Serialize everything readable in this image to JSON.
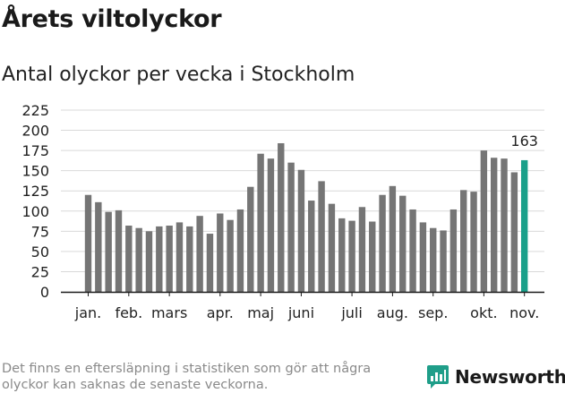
{
  "header": {
    "title": "Årets viltolyckor",
    "subtitle": "Antal olyckor per vecka i Stockholm"
  },
  "colors": {
    "bar": "#757575",
    "highlight": "#1aa08a",
    "grid": "#d9d9d9",
    "axis": "#1a1a1a",
    "brand": "#1f9e89",
    "footnote": "#8a8a8a"
  },
  "chart_data": {
    "type": "bar",
    "title": "Antal olyckor per vecka i Stockholm",
    "xlabel": "",
    "ylabel": "",
    "ylim": [
      0,
      225
    ],
    "y_ticks": [
      0,
      25,
      50,
      75,
      100,
      125,
      150,
      175,
      200,
      225
    ],
    "grid": true,
    "values": [
      120,
      111,
      99,
      101,
      82,
      79,
      75,
      81,
      82,
      86,
      81,
      94,
      72,
      97,
      89,
      102,
      130,
      171,
      165,
      184,
      160,
      151,
      113,
      137,
      109,
      91,
      88,
      105,
      87,
      120,
      131,
      119,
      102,
      86,
      79,
      76,
      102,
      126,
      124,
      175,
      166,
      165,
      148,
      163
    ],
    "month_labels": [
      {
        "label": "jan.",
        "week": 1
      },
      {
        "label": "feb.",
        "week": 5
      },
      {
        "label": "mars",
        "week": 9
      },
      {
        "label": "apr.",
        "week": 14
      },
      {
        "label": "maj",
        "week": 18
      },
      {
        "label": "juni",
        "week": 22
      },
      {
        "label": "juli",
        "week": 27
      },
      {
        "label": "aug.",
        "week": 31
      },
      {
        "label": "sep.",
        "week": 35
      },
      {
        "label": "okt.",
        "week": 40
      },
      {
        "label": "nov.",
        "week": 44
      }
    ],
    "highlight_index": 43,
    "highlight_label": "163"
  },
  "footer": {
    "note": "Det finns en eftersläpning i statistiken som gör att några\nolyckor kan saknas de senaste veckorna.",
    "brand": "Newsworthy"
  }
}
